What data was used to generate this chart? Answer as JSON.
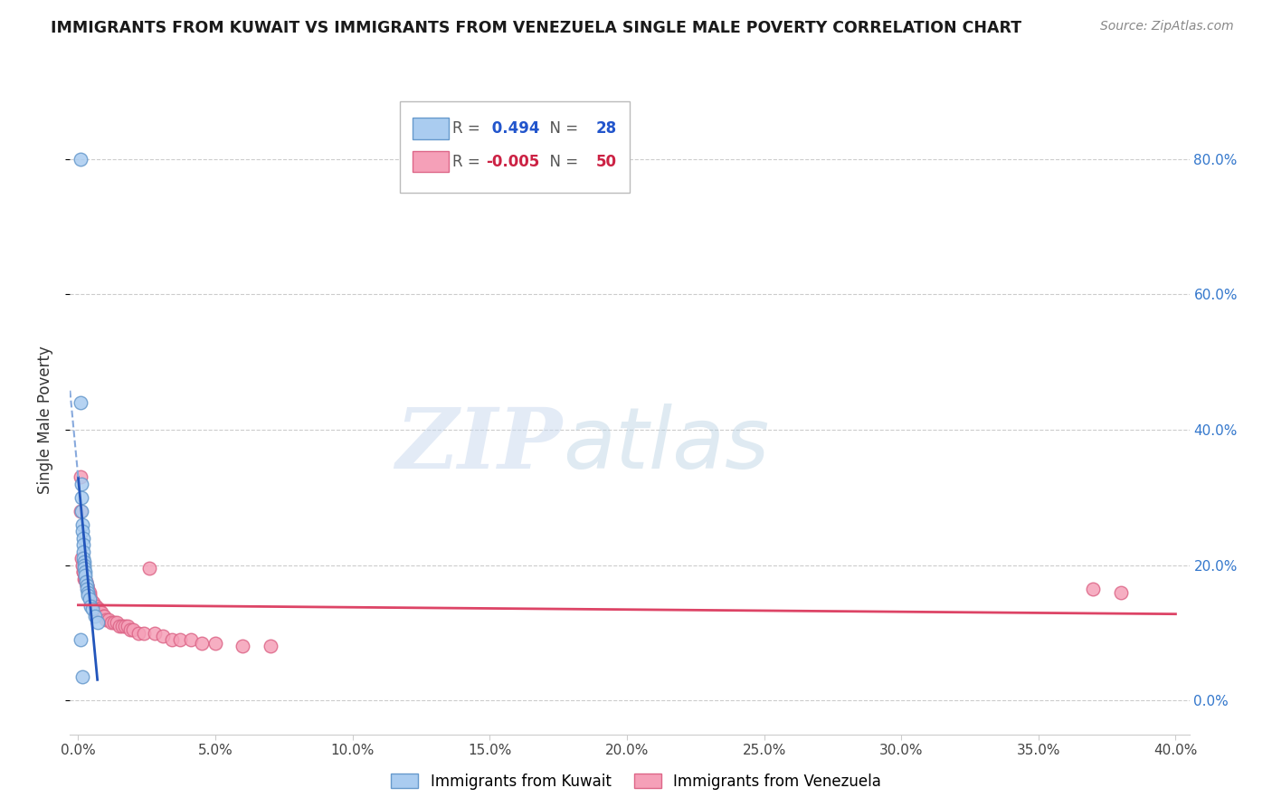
{
  "title": "IMMIGRANTS FROM KUWAIT VS IMMIGRANTS FROM VENEZUELA SINGLE MALE POVERTY CORRELATION CHART",
  "source": "Source: ZipAtlas.com",
  "ylabel": "Single Male Poverty",
  "xlim": [
    -0.003,
    0.405
  ],
  "ylim": [
    -0.05,
    0.88
  ],
  "xticks": [
    0.0,
    0.05,
    0.1,
    0.15,
    0.2,
    0.25,
    0.3,
    0.35,
    0.4
  ],
  "yticks_right": [
    0.0,
    0.2,
    0.4,
    0.6,
    0.8
  ],
  "kuwait_color": "#aaccf0",
  "kuwait_edge": "#6699cc",
  "venezuela_color": "#f5a0b8",
  "venezuela_edge": "#dd6688",
  "kuwait_R": 0.494,
  "kuwait_N": 28,
  "venezuela_R": -0.005,
  "venezuela_N": 50,
  "kuwait_line_color": "#2255bb",
  "kuwait_dash_color": "#88aadd",
  "venezuela_line_color": "#dd4466",
  "watermark_zip": "ZIP",
  "watermark_atlas": "atlas",
  "kuwait_x": [
    0.0008,
    0.001,
    0.0011,
    0.0012,
    0.0013,
    0.0015,
    0.0016,
    0.0017,
    0.0018,
    0.0019,
    0.002,
    0.0021,
    0.0022,
    0.0023,
    0.0024,
    0.0026,
    0.0028,
    0.003,
    0.0032,
    0.0034,
    0.0036,
    0.004,
    0.0045,
    0.005,
    0.006,
    0.007,
    0.001,
    0.0014
  ],
  "kuwait_y": [
    0.8,
    0.44,
    0.32,
    0.3,
    0.28,
    0.26,
    0.25,
    0.24,
    0.23,
    0.22,
    0.21,
    0.205,
    0.2,
    0.195,
    0.19,
    0.185,
    0.175,
    0.17,
    0.165,
    0.16,
    0.155,
    0.15,
    0.14,
    0.135,
    0.125,
    0.115,
    0.09,
    0.035
  ],
  "venezuela_x": [
    0.0008,
    0.001,
    0.0012,
    0.0015,
    0.0018,
    0.002,
    0.0022,
    0.0025,
    0.0028,
    0.003,
    0.0033,
    0.0036,
    0.004,
    0.0043,
    0.0046,
    0.005,
    0.0055,
    0.006,
    0.0065,
    0.007,
    0.0075,
    0.008,
    0.0085,
    0.009,
    0.0095,
    0.01,
    0.011,
    0.012,
    0.013,
    0.014,
    0.015,
    0.016,
    0.017,
    0.018,
    0.019,
    0.02,
    0.022,
    0.024,
    0.026,
    0.028,
    0.031,
    0.034,
    0.037,
    0.041,
    0.045,
    0.05,
    0.06,
    0.07,
    0.37,
    0.38
  ],
  "venezuela_y": [
    0.33,
    0.28,
    0.21,
    0.2,
    0.19,
    0.19,
    0.18,
    0.18,
    0.175,
    0.17,
    0.17,
    0.165,
    0.16,
    0.155,
    0.15,
    0.145,
    0.145,
    0.14,
    0.14,
    0.135,
    0.135,
    0.13,
    0.13,
    0.125,
    0.125,
    0.12,
    0.12,
    0.115,
    0.115,
    0.115,
    0.11,
    0.11,
    0.11,
    0.11,
    0.105,
    0.105,
    0.1,
    0.1,
    0.195,
    0.1,
    0.095,
    0.09,
    0.09,
    0.09,
    0.085,
    0.085,
    0.08,
    0.08,
    0.165,
    0.16
  ]
}
